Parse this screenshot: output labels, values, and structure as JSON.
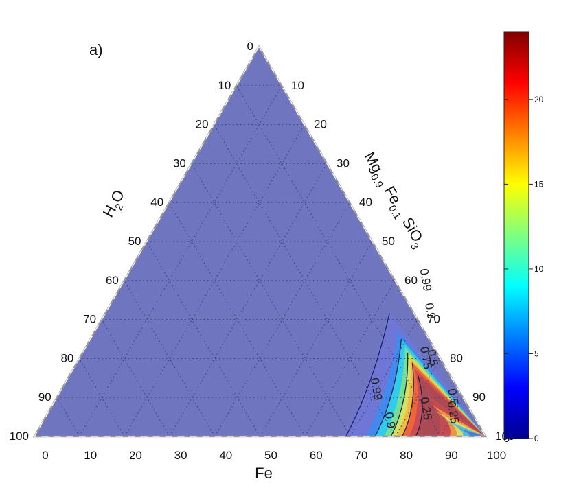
{
  "chart_data": {
    "type": "ternary-contour",
    "panel_label": "a)",
    "axes": {
      "bottom": {
        "label": "Fe",
        "ticks": [
          "0",
          "10",
          "20",
          "30",
          "40",
          "50",
          "60",
          "70",
          "80",
          "90",
          "100"
        ]
      },
      "left": {
        "label_main": "H",
        "label_sub": "2",
        "label_tail": "O",
        "ticks": [
          "0",
          "10",
          "20",
          "30",
          "40",
          "50",
          "60",
          "70",
          "80",
          "90",
          "100"
        ]
      },
      "right": {
        "label_parts": [
          {
            "text": "Mg",
            "sub": false
          },
          {
            "text": "0.9",
            "sub": true
          },
          {
            "text": " Fe",
            "sub": false
          },
          {
            "text": "0.1",
            "sub": true
          },
          {
            "text": " SiO",
            "sub": false
          },
          {
            "text": "3",
            "sub": true
          }
        ],
        "ticks": [
          "0",
          "10",
          "20",
          "30",
          "40",
          "50",
          "60",
          "70",
          "80",
          "90",
          "100"
        ]
      }
    },
    "corner_zero_label": "0",
    "contours": [
      {
        "level": "0.99",
        "fe_at_bottom": 69,
        "labels": [
          {
            "text": "0.99",
            "fe": 66,
            "enst": 40
          },
          {
            "text": "0.99",
            "fe": 69,
            "enst": 12
          }
        ]
      },
      {
        "level": "0.9",
        "fe_at_bottom": 75.5,
        "labels": [
          {
            "text": "0.9",
            "fe": 71,
            "enst": 32
          },
          {
            "text": "0.9",
            "fe": 76,
            "enst": 4
          }
        ]
      },
      {
        "level": "0.75",
        "fe_at_bottom": 79,
        "labels": [
          {
            "text": "0.75",
            "fe": 76,
            "enst": 20
          }
        ]
      },
      {
        "level": "0.5",
        "fe_at_bottom": 81.5,
        "labels": [
          {
            "text": "0.5",
            "fe": 77.5,
            "enst": 20
          },
          {
            "text": "0.5",
            "fe": 87,
            "enst": 10
          }
        ]
      },
      {
        "level": "0.25",
        "fe_at_bottom": 84.5,
        "labels": [
          {
            "text": "0.25",
            "fe": 82.5,
            "enst": 7
          },
          {
            "text": "0.25",
            "fe": 89,
            "enst": 6
          }
        ]
      }
    ],
    "colorbar": {
      "colormap": "jet",
      "min": 0,
      "max": 24,
      "ticks": [
        "0",
        "5",
        "10",
        "15",
        "20"
      ]
    },
    "grid": "dotted, every 10%"
  }
}
